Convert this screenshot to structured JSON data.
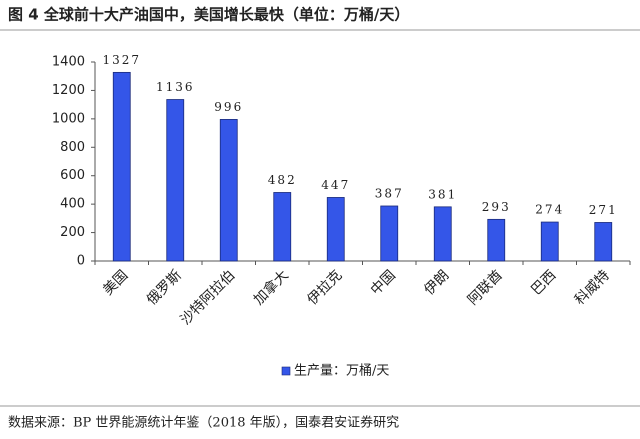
{
  "chart_data": {
    "type": "bar",
    "title": "图 4 全球前十大产油国中，美国增长最快（单位：万桶/天）",
    "categories": [
      "美国",
      "俄罗斯",
      "沙特阿拉伯",
      "加拿大",
      "伊拉克",
      "中国",
      "伊朗",
      "阿联酋",
      "巴西",
      "科威特"
    ],
    "series": [
      {
        "name": "生产量：万桶/天",
        "color": "#3456e8",
        "values": [
          1327,
          1136,
          996,
          482,
          447,
          387,
          381,
          293,
          274,
          271
        ]
      }
    ],
    "ylim": [
      0,
      1400
    ],
    "yticks": [
      0,
      200,
      400,
      600,
      800,
      1000,
      1200,
      1400
    ],
    "grid": false,
    "legend": "bottom",
    "source": "数据来源：BP 世界能源统计年鉴（2018 年版），国泰君安证券研究"
  }
}
